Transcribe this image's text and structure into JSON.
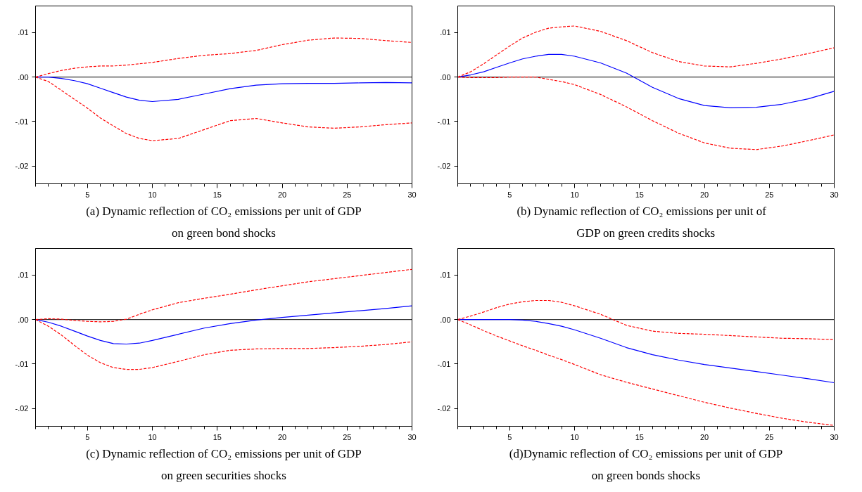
{
  "chart_data": [
    {
      "type": "line",
      "annotations": [
        "(a) Dynamic reflection of CO₂ emissions per unit of GDP on green bond shocks"
      ],
      "x": [
        1,
        2,
        3,
        4,
        5,
        6,
        7,
        8,
        9,
        10,
        12,
        14,
        16,
        18,
        20,
        22,
        24,
        26,
        28,
        30
      ],
      "series": [
        {
          "color": "#0000ff",
          "line_style": "solid",
          "values": [
            0,
            0,
            -0.0003,
            -0.0008,
            -0.0015,
            -0.0025,
            -0.0035,
            -0.0045,
            -0.0052,
            -0.0055,
            -0.005,
            -0.0038,
            -0.0026,
            -0.0018,
            -0.0015,
            -0.0014,
            -0.0014,
            -0.0013,
            -0.0012,
            -0.0013
          ]
        },
        {
          "color": "#ff0000",
          "line_style": "dashed",
          "values": [
            0,
            0.0008,
            0.0015,
            0.002,
            0.0023,
            0.0025,
            0.0025,
            0.0027,
            0.003,
            0.0033,
            0.0042,
            0.0049,
            0.0053,
            0.006,
            0.0073,
            0.0083,
            0.0088,
            0.0087,
            0.0082,
            0.0078
          ]
        },
        {
          "color": "#ff0000",
          "line_style": "dashed",
          "values": [
            0,
            -0.001,
            -0.003,
            -0.005,
            -0.007,
            -0.0092,
            -0.011,
            -0.0127,
            -0.0138,
            -0.0143,
            -0.0138,
            -0.0118,
            -0.0098,
            -0.0093,
            -0.0103,
            -0.0112,
            -0.0115,
            -0.0112,
            -0.0107,
            -0.0103
          ]
        }
      ],
      "xlim": [
        1,
        30
      ],
      "ylim": [
        -0.024,
        0.016
      ],
      "xticks": [
        {
          "value": 1,
          "label": null
        },
        {
          "value": 2,
          "label": null
        },
        {
          "value": 3,
          "label": null
        },
        {
          "value": 4,
          "label": null
        },
        5,
        {
          "value": 6,
          "label": null
        },
        {
          "value": 7,
          "label": null
        },
        {
          "value": 8,
          "label": null
        },
        {
          "value": 9,
          "label": null
        },
        10,
        {
          "value": 11,
          "label": null
        },
        {
          "value": 12,
          "label": null
        },
        {
          "value": 13,
          "label": null
        },
        {
          "value": 14,
          "label": null
        },
        15,
        {
          "value": 16,
          "label": null
        },
        {
          "value": 17,
          "label": null
        },
        {
          "value": 18,
          "label": null
        },
        {
          "value": 19,
          "label": null
        },
        20,
        {
          "value": 21,
          "label": null
        },
        {
          "value": 22,
          "label": null
        },
        {
          "value": 23,
          "label": null
        },
        {
          "value": 24,
          "label": null
        },
        25,
        {
          "value": 26,
          "label": null
        },
        {
          "value": 27,
          "label": null
        },
        {
          "value": 28,
          "label": null
        },
        {
          "value": 29,
          "label": null
        },
        30
      ],
      "yticks": [
        {
          "value": 0.01,
          "label": ".01"
        },
        {
          "value": 0,
          "label": ".00"
        },
        {
          "value": -0.01,
          "label": "-.01"
        },
        {
          "value": -0.02,
          "label": "-.02"
        }
      ],
      "ref_lines": [
        {
          "axis": "y",
          "value": 0,
          "color": "#000000"
        }
      ],
      "grid": false
    },
    {
      "type": "line",
      "annotations": [
        "(b)    Dynamic reflection of CO₂ emissions per unit of GDP on green credits shocks"
      ],
      "x": [
        1,
        2,
        3,
        4,
        5,
        6,
        7,
        8,
        9,
        10,
        12,
        14,
        16,
        18,
        20,
        22,
        24,
        26,
        28,
        30
      ],
      "series": [
        {
          "color": "#0000ff",
          "line_style": "solid",
          "values": [
            0,
            0.0005,
            0.0012,
            0.0022,
            0.0032,
            0.0041,
            0.0047,
            0.0051,
            0.0051,
            0.0047,
            0.0032,
            0.0009,
            -0.0023,
            -0.0048,
            -0.0064,
            -0.0069,
            -0.0068,
            -0.0061,
            -0.0049,
            -0.0032
          ]
        },
        {
          "color": "#ff0000",
          "line_style": "dashed",
          "values": [
            0,
            0.0012,
            0.003,
            0.005,
            0.007,
            0.0088,
            0.0101,
            0.011,
            0.0113,
            0.0115,
            0.0103,
            0.0082,
            0.0055,
            0.0035,
            0.0025,
            0.0023,
            0.0031,
            0.0041,
            0.0053,
            0.0066
          ]
        },
        {
          "color": "#ff0000",
          "line_style": "dashed",
          "values": [
            0,
            -0.0001,
            -0.0001,
            -0.0001,
            0,
            0,
            0,
            -0.0005,
            -0.001,
            -0.0017,
            -0.0039,
            -0.0067,
            -0.0098,
            -0.0126,
            -0.0148,
            -0.016,
            -0.0163,
            -0.0155,
            -0.0143,
            -0.013
          ]
        }
      ],
      "xlim": [
        1,
        30
      ],
      "ylim": [
        -0.024,
        0.016
      ],
      "xticks": [
        {
          "value": 1,
          "label": null
        },
        {
          "value": 2,
          "label": null
        },
        {
          "value": 3,
          "label": null
        },
        {
          "value": 4,
          "label": null
        },
        5,
        {
          "value": 6,
          "label": null
        },
        {
          "value": 7,
          "label": null
        },
        {
          "value": 8,
          "label": null
        },
        {
          "value": 9,
          "label": null
        },
        10,
        {
          "value": 11,
          "label": null
        },
        {
          "value": 12,
          "label": null
        },
        {
          "value": 13,
          "label": null
        },
        {
          "value": 14,
          "label": null
        },
        15,
        {
          "value": 16,
          "label": null
        },
        {
          "value": 17,
          "label": null
        },
        {
          "value": 18,
          "label": null
        },
        {
          "value": 19,
          "label": null
        },
        20,
        {
          "value": 21,
          "label": null
        },
        {
          "value": 22,
          "label": null
        },
        {
          "value": 23,
          "label": null
        },
        {
          "value": 24,
          "label": null
        },
        25,
        {
          "value": 26,
          "label": null
        },
        {
          "value": 27,
          "label": null
        },
        {
          "value": 28,
          "label": null
        },
        {
          "value": 29,
          "label": null
        },
        30
      ],
      "yticks": [
        {
          "value": 0.01,
          "label": ".01"
        },
        {
          "value": 0,
          "label": ".00"
        },
        {
          "value": -0.01,
          "label": "-.01"
        },
        {
          "value": -0.02,
          "label": "-.02"
        }
      ],
      "ref_lines": [
        {
          "axis": "y",
          "value": 0,
          "color": "#000000"
        }
      ],
      "grid": false
    },
    {
      "type": "line",
      "annotations": [
        "(c) Dynamic reflection of CO₂ emissions per unit of GDP on green securities shocks"
      ],
      "x": [
        1,
        2,
        3,
        4,
        5,
        6,
        7,
        8,
        9,
        10,
        12,
        14,
        16,
        18,
        20,
        22,
        24,
        26,
        28,
        30
      ],
      "series": [
        {
          "color": "#0000ff",
          "line_style": "solid",
          "values": [
            0,
            -0.0006,
            -0.0015,
            -0.0026,
            -0.0037,
            -0.0047,
            -0.0054,
            -0.0055,
            -0.0053,
            -0.0047,
            -0.0033,
            -0.0019,
            -0.0009,
            -0.0001,
            0.0005,
            0.001,
            0.0015,
            0.002,
            0.0025,
            0.0031
          ]
        },
        {
          "color": "#ff0000",
          "line_style": "dashed",
          "values": [
            0,
            0.0002,
            0.0001,
            -0.0002,
            -0.0004,
            -0.0005,
            -0.0004,
            0.0001,
            0.0012,
            0.0022,
            0.0038,
            0.0048,
            0.0057,
            0.0067,
            0.0076,
            0.0085,
            0.0092,
            0.0099,
            0.0106,
            0.0113
          ]
        },
        {
          "color": "#ff0000",
          "line_style": "dashed",
          "values": [
            0,
            -0.0015,
            -0.0035,
            -0.0058,
            -0.008,
            -0.0097,
            -0.0108,
            -0.0112,
            -0.0112,
            -0.0108,
            -0.0094,
            -0.0079,
            -0.0069,
            -0.0066,
            -0.0065,
            -0.0065,
            -0.0063,
            -0.006,
            -0.0056,
            -0.005
          ]
        }
      ],
      "xlim": [
        1,
        30
      ],
      "ylim": [
        -0.024,
        0.016
      ],
      "xticks": [
        {
          "value": 1,
          "label": null
        },
        {
          "value": 2,
          "label": null
        },
        {
          "value": 3,
          "label": null
        },
        {
          "value": 4,
          "label": null
        },
        5,
        {
          "value": 6,
          "label": null
        },
        {
          "value": 7,
          "label": null
        },
        {
          "value": 8,
          "label": null
        },
        {
          "value": 9,
          "label": null
        },
        10,
        {
          "value": 11,
          "label": null
        },
        {
          "value": 12,
          "label": null
        },
        {
          "value": 13,
          "label": null
        },
        {
          "value": 14,
          "label": null
        },
        15,
        {
          "value": 16,
          "label": null
        },
        {
          "value": 17,
          "label": null
        },
        {
          "value": 18,
          "label": null
        },
        {
          "value": 19,
          "label": null
        },
        20,
        {
          "value": 21,
          "label": null
        },
        {
          "value": 22,
          "label": null
        },
        {
          "value": 23,
          "label": null
        },
        {
          "value": 24,
          "label": null
        },
        25,
        {
          "value": 26,
          "label": null
        },
        {
          "value": 27,
          "label": null
        },
        {
          "value": 28,
          "label": null
        },
        {
          "value": 29,
          "label": null
        },
        30
      ],
      "yticks": [
        {
          "value": 0.01,
          "label": ".01"
        },
        {
          "value": 0,
          "label": ".00"
        },
        {
          "value": -0.01,
          "label": "-.01"
        },
        {
          "value": -0.02,
          "label": "-.02"
        }
      ],
      "ref_lines": [
        {
          "axis": "y",
          "value": 0,
          "color": "#000000"
        }
      ],
      "grid": false
    },
    {
      "type": "line",
      "annotations": [
        "(d)Dynamic reflection of CO₂ emissions per unit of GDP on green bonds shocks"
      ],
      "x": [
        1,
        2,
        3,
        4,
        5,
        6,
        7,
        8,
        9,
        10,
        12,
        14,
        16,
        18,
        20,
        22,
        24,
        26,
        28,
        30
      ],
      "series": [
        {
          "color": "#0000ff",
          "line_style": "solid",
          "values": [
            0,
            0,
            0,
            0,
            0,
            -0.0001,
            -0.0004,
            -0.0009,
            -0.0015,
            -0.0023,
            -0.0042,
            -0.0063,
            -0.0079,
            -0.0091,
            -0.0101,
            -0.0109,
            -0.0117,
            -0.0125,
            -0.0133,
            -0.0142
          ]
        },
        {
          "color": "#ff0000",
          "line_style": "dashed",
          "values": [
            0,
            0.0008,
            0.0017,
            0.0027,
            0.0035,
            0.004,
            0.0043,
            0.0043,
            0.0039,
            0.0031,
            0.0012,
            -0.0013,
            -0.0026,
            -0.0031,
            -0.0033,
            -0.0036,
            -0.0039,
            -0.0042,
            -0.0043,
            -0.0045
          ]
        },
        {
          "color": "#ff0000",
          "line_style": "dashed",
          "values": [
            0,
            -0.0012,
            -0.0025,
            -0.0037,
            -0.0048,
            -0.0059,
            -0.0069,
            -0.008,
            -0.009,
            -0.0101,
            -0.0124,
            -0.0141,
            -0.0156,
            -0.0171,
            -0.0186,
            -0.0199,
            -0.0211,
            -0.0222,
            -0.0231,
            -0.0238
          ]
        }
      ],
      "xlim": [
        1,
        30
      ],
      "ylim": [
        -0.024,
        0.016
      ],
      "xticks": [
        {
          "value": 1,
          "label": null
        },
        {
          "value": 2,
          "label": null
        },
        {
          "value": 3,
          "label": null
        },
        {
          "value": 4,
          "label": null
        },
        5,
        {
          "value": 6,
          "label": null
        },
        {
          "value": 7,
          "label": null
        },
        {
          "value": 8,
          "label": null
        },
        {
          "value": 9,
          "label": null
        },
        10,
        {
          "value": 11,
          "label": null
        },
        {
          "value": 12,
          "label": null
        },
        {
          "value": 13,
          "label": null
        },
        {
          "value": 14,
          "label": null
        },
        15,
        {
          "value": 16,
          "label": null
        },
        {
          "value": 17,
          "label": null
        },
        {
          "value": 18,
          "label": null
        },
        {
          "value": 19,
          "label": null
        },
        20,
        {
          "value": 21,
          "label": null
        },
        {
          "value": 22,
          "label": null
        },
        {
          "value": 23,
          "label": null
        },
        {
          "value": 24,
          "label": null
        },
        25,
        {
          "value": 26,
          "label": null
        },
        {
          "value": 27,
          "label": null
        },
        {
          "value": 28,
          "label": null
        },
        {
          "value": 29,
          "label": null
        },
        30
      ],
      "yticks": [
        {
          "value": 0.01,
          "label": ".01"
        },
        {
          "value": 0,
          "label": ".00"
        },
        {
          "value": -0.01,
          "label": "-.01"
        },
        {
          "value": -0.02,
          "label": "-.02"
        }
      ],
      "ref_lines": [
        {
          "axis": "y",
          "value": 0,
          "color": "#000000"
        }
      ],
      "grid": false
    }
  ]
}
